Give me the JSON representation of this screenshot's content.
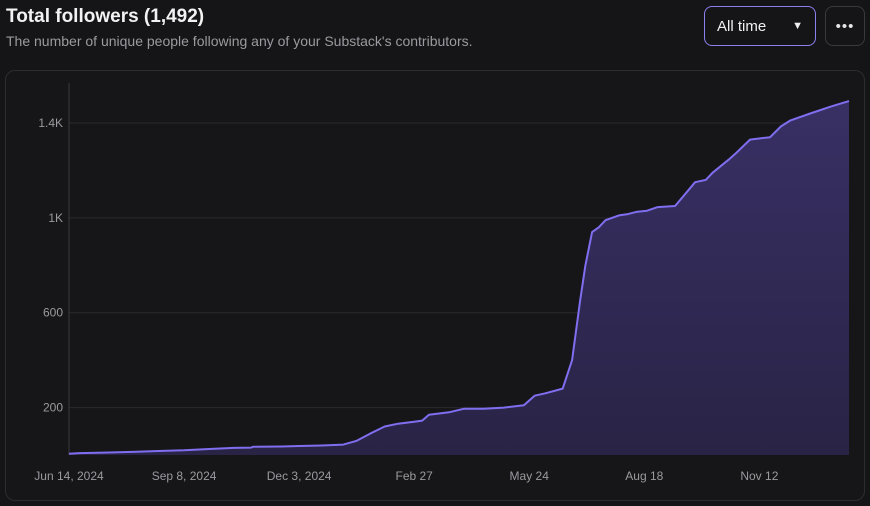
{
  "header": {
    "title": "Total followers (1,492)",
    "subtitle": "The number of unique people following any of your Substack's contributors."
  },
  "controls": {
    "range_label": "All time",
    "range_caret_icon": "caret-down-icon",
    "more_icon": "more-horizontal-icon",
    "more_glyph": "•••"
  },
  "colors": {
    "line": "#7f6ff0",
    "area_top": "#3a3168",
    "area_bottom": "#2a2448",
    "grid": "#2a2a2e",
    "axis": "#3a3a3e"
  },
  "chart_data": {
    "type": "area",
    "title": "Total followers (1,492)",
    "xlabel": "",
    "ylabel": "",
    "x_tick_labels": [
      "Jun 14, 2024",
      "Sep 8, 2024",
      "Dec 3, 2024",
      "Feb 27",
      "May 24",
      "Aug 18",
      "Nov 12"
    ],
    "y_tick_labels": [
      "200",
      "600",
      "1K",
      "1.4K"
    ],
    "y_ticks": [
      200,
      600,
      1000,
      1400
    ],
    "ylim": [
      0,
      1560
    ],
    "x_start": "2024-06-14",
    "x_end": "2026-01-18",
    "grid": true,
    "legend": "none",
    "series": [
      {
        "x": [
          "2024-06-14",
          "2024-06-22",
          "2024-07-10",
          "2024-08-01",
          "2024-08-20",
          "2024-09-08",
          "2024-09-25",
          "2024-10-15",
          "2024-10-28",
          "2024-10-30",
          "2024-11-20",
          "2024-12-03",
          "2024-12-20",
          "2025-01-05",
          "2025-01-15",
          "2025-01-25",
          "2025-02-05",
          "2025-02-15",
          "2025-02-27",
          "2025-03-05",
          "2025-03-10",
          "2025-03-25",
          "2025-04-05",
          "2025-04-20",
          "2025-05-05",
          "2025-05-20",
          "2025-05-28",
          "2025-06-05",
          "2025-06-18",
          "2025-06-25",
          "2025-07-01",
          "2025-07-05",
          "2025-07-10",
          "2025-07-15",
          "2025-07-20",
          "2025-07-25",
          "2025-07-30",
          "2025-08-05",
          "2025-08-12",
          "2025-08-20",
          "2025-08-28",
          "2025-09-10",
          "2025-09-25",
          "2025-10-03",
          "2025-10-08",
          "2025-10-20",
          "2025-10-25",
          "2025-11-05",
          "2025-11-20",
          "2025-11-28",
          "2025-12-05",
          "2025-12-20",
          "2026-01-05",
          "2026-01-18"
        ],
        "values": [
          5,
          8,
          10,
          13,
          17,
          20,
          25,
          30,
          31,
          35,
          36,
          38,
          40,
          44,
          60,
          90,
          120,
          132,
          140,
          145,
          170,
          180,
          195,
          195,
          200,
          210,
          250,
          260,
          280,
          400,
          650,
          800,
          940,
          960,
          990,
          1000,
          1010,
          1015,
          1025,
          1030,
          1045,
          1050,
          1150,
          1160,
          1190,
          1245,
          1270,
          1330,
          1340,
          1385,
          1410,
          1440,
          1470,
          1492
        ]
      }
    ]
  }
}
